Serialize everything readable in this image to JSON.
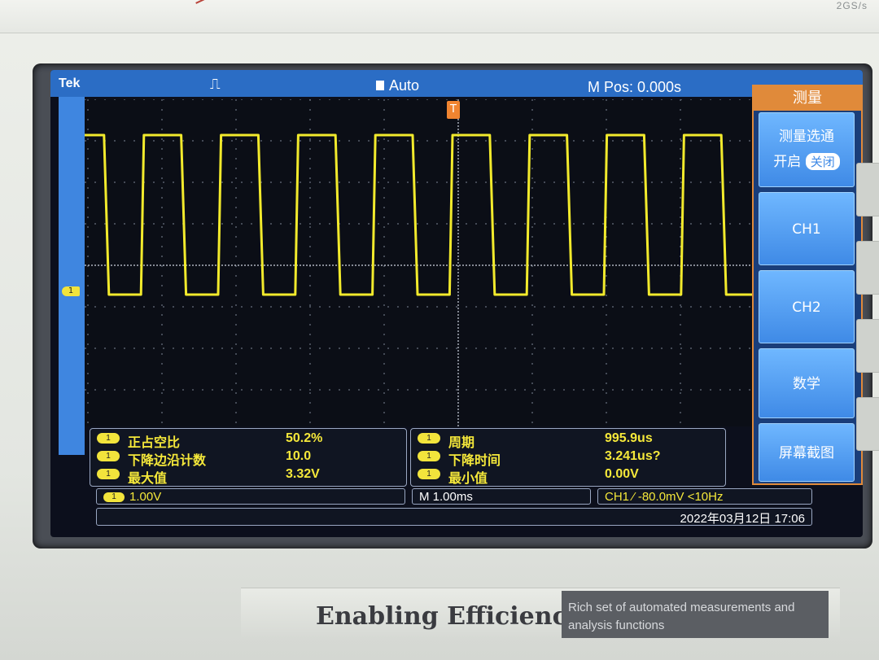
{
  "device": {
    "sample_rate": "2GS/s",
    "slogan": "Enabling Efficiency",
    "description": "Rich set of automated measurements and analysis functions"
  },
  "status": {
    "brand": "Tek",
    "trigger_state": "Auto",
    "m_pos": "M Pos: 0.000s"
  },
  "menu": {
    "title": "测量",
    "gating_label": "测量选通",
    "gating_on": "开启",
    "gating_off": "关闭",
    "ch1": "CH1",
    "ch2": "CH2",
    "math": "数学",
    "screenshot": "屏幕截图"
  },
  "measurements_left": [
    {
      "badge": "1",
      "label": "正占空比",
      "value": "50.2%"
    },
    {
      "badge": "1",
      "label": "下降边沿计数",
      "value": "10.0"
    },
    {
      "badge": "1",
      "label": "最大值",
      "value": "3.32V"
    }
  ],
  "measurements_right": [
    {
      "badge": "1",
      "label": "周期",
      "value": "995.9us"
    },
    {
      "badge": "1",
      "label": "下降时间",
      "value": "3.241us?"
    },
    {
      "badge": "1",
      "label": "最小值",
      "value": "0.00V"
    }
  ],
  "info": {
    "ch1_badge": "1",
    "ch1_scale": "1.00V",
    "timebase": "M 1.00ms",
    "trigger": "CH1 ⁄ -80.0mV  <10Hz",
    "datetime": "2022年03月12日 17:06"
  },
  "waveform": {
    "color": "#f2ea2c",
    "cycles": 9,
    "duty": 0.502
  },
  "colors": {
    "statusbar": "#2b6dc5",
    "menu_accent": "#e08a3a",
    "measure_text": "#f5e83a"
  }
}
